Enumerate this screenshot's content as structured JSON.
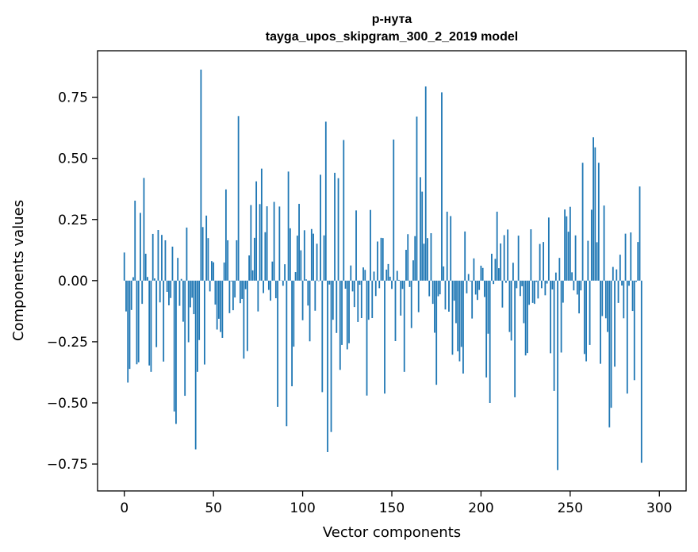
{
  "chart_data": {
    "type": "bar",
    "title": "р-нута",
    "subtitle": "tayga_upos_skipgram_300_2_2019 model",
    "xlabel": "Vector components",
    "ylabel": "Components values",
    "xlim": [
      -15,
      315
    ],
    "ylim": [
      -0.86,
      0.94
    ],
    "x_ticks": [
      0,
      50,
      100,
      150,
      200,
      250,
      300
    ],
    "y_ticks": [
      -0.75,
      -0.5,
      -0.25,
      0.0,
      0.25,
      0.5,
      0.75
    ],
    "y_tick_labels": [
      "−0.75",
      "−0.50",
      "−0.25",
      "0.00",
      "0.25",
      "0.50",
      "0.75"
    ],
    "grid": false,
    "bar_color": "#1f77b4",
    "values": [
      0.115,
      -0.126,
      -0.417,
      -0.361,
      -0.12,
      0.014,
      0.327,
      -0.342,
      -0.334,
      0.277,
      -0.095,
      0.42,
      0.11,
      0.015,
      -0.347,
      -0.373,
      0.191,
      0.009,
      -0.272,
      0.207,
      -0.089,
      0.187,
      -0.331,
      0.165,
      -0.046,
      -0.101,
      -0.071,
      0.139,
      -0.535,
      -0.586,
      0.093,
      -0.103,
      0.007,
      -0.168,
      -0.471,
      0.217,
      -0.252,
      -0.109,
      -0.07,
      -0.137,
      -0.69,
      -0.373,
      -0.243,
      0.863,
      0.219,
      -0.343,
      0.266,
      0.174,
      -0.044,
      0.08,
      0.075,
      -0.098,
      -0.2,
      -0.156,
      -0.21,
      -0.234,
      0.074,
      0.373,
      0.165,
      -0.133,
      -0.003,
      -0.121,
      -0.069,
      0.165,
      0.673,
      -0.092,
      -0.075,
      -0.319,
      -0.035,
      -0.288,
      0.103,
      0.309,
      0.042,
      0.175,
      0.406,
      -0.126,
      0.313,
      0.458,
      -0.051,
      0.198,
      0.304,
      -0.038,
      -0.082,
      0.078,
      0.322,
      -0.072,
      -0.516,
      0.303,
      0.001,
      -0.021,
      0.067,
      -0.595,
      0.446,
      0.214,
      -0.432,
      -0.27,
      0.035,
      0.184,
      0.314,
      0.124,
      -0.162,
      0.206,
      0.005,
      -0.102,
      -0.248,
      0.211,
      0.192,
      -0.123,
      0.151,
      -0.002,
      0.433,
      -0.456,
      0.185,
      0.65,
      -0.701,
      -0.016,
      -0.619,
      -0.16,
      0.441,
      -0.214,
      0.419,
      -0.365,
      -0.263,
      0.575,
      -0.033,
      -0.281,
      -0.256,
      0.062,
      -0.044,
      -0.108,
      0.287,
      -0.169,
      -0.017,
      -0.153,
      0.054,
      0.044,
      -0.47,
      -0.16,
      0.289,
      -0.153,
      0.037,
      -0.063,
      0.16,
      -0.031,
      0.175,
      0.174,
      -0.462,
      0.045,
      0.068,
      0.016,
      -0.034,
      0.577,
      -0.247,
      0.04,
      0.003,
      -0.143,
      -0.034,
      -0.373,
      0.126,
      0.19,
      -0.026,
      -0.194,
      0.083,
      0.182,
      0.671,
      -0.129,
      0.423,
      0.364,
      0.151,
      0.794,
      0.174,
      -0.064,
      0.194,
      -0.095,
      -0.213,
      -0.426,
      -0.064,
      -0.056,
      0.77,
      0.058,
      -0.118,
      0.282,
      -0.127,
      0.264,
      -0.303,
      -0.082,
      -0.174,
      -0.289,
      -0.33,
      -0.271,
      -0.38,
      0.201,
      -0.052,
      0.027,
      -0.003,
      -0.155,
      0.091,
      -0.057,
      -0.079,
      -0.038,
      0.061,
      0.052,
      -0.067,
      -0.396,
      -0.217,
      -0.5,
      0.11,
      -0.014,
      0.089,
      0.282,
      0.051,
      0.152,
      -0.11,
      0.186,
      -0.009,
      0.209,
      -0.21,
      -0.245,
      0.073,
      -0.477,
      -0.031,
      0.184,
      -0.063,
      -0.023,
      -0.174,
      -0.306,
      -0.296,
      -0.099,
      0.21,
      -0.091,
      -0.095,
      -0.005,
      -0.073,
      0.15,
      -0.031,
      0.158,
      -0.06,
      -0.012,
      0.258,
      -0.297,
      -0.036,
      -0.451,
      0.033,
      -0.775,
      0.093,
      -0.294,
      -0.09,
      0.291,
      0.263,
      0.2,
      0.302,
      0.034,
      -0.04,
      0.185,
      -0.057,
      -0.134,
      -0.04,
      0.482,
      -0.3,
      -0.33,
      0.163,
      -0.263,
      0.29,
      0.586,
      0.545,
      0.157,
      0.482,
      -0.34,
      -0.145,
      0.307,
      -0.154,
      -0.21,
      -0.6,
      -0.52,
      0.056,
      -0.352,
      0.046,
      -0.091,
      0.106,
      -0.02,
      -0.154,
      0.192,
      -0.462,
      -0.021,
      0.197,
      -0.124,
      -0.407,
      -0.005,
      0.158,
      0.385,
      -0.745
    ]
  }
}
